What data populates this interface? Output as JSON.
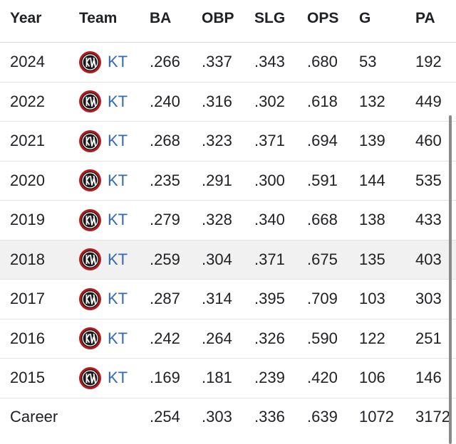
{
  "table": {
    "headers": {
      "year": "Year",
      "team": "Team",
      "ba": "BA",
      "obp": "OBP",
      "slg": "SLG",
      "ops": "OPS",
      "g": "G",
      "pa": "PA"
    },
    "rows": [
      {
        "year": "2024",
        "team": "KT",
        "ba": ".266",
        "obp": ".337",
        "slg": ".343",
        "ops": ".680",
        "g": "53",
        "pa": "192"
      },
      {
        "year": "2022",
        "team": "KT",
        "ba": ".240",
        "obp": ".316",
        "slg": ".302",
        "ops": ".618",
        "g": "132",
        "pa": "449"
      },
      {
        "year": "2021",
        "team": "KT",
        "ba": ".268",
        "obp": ".323",
        "slg": ".371",
        "ops": ".694",
        "g": "139",
        "pa": "460"
      },
      {
        "year": "2020",
        "team": "KT",
        "ba": ".235",
        "obp": ".291",
        "slg": ".300",
        "ops": ".591",
        "g": "144",
        "pa": "535"
      },
      {
        "year": "2019",
        "team": "KT",
        "ba": ".279",
        "obp": ".328",
        "slg": ".340",
        "ops": ".668",
        "g": "138",
        "pa": "433"
      },
      {
        "year": "2018",
        "team": "KT",
        "ba": ".259",
        "obp": ".304",
        "slg": ".371",
        "ops": ".675",
        "g": "135",
        "pa": "403"
      },
      {
        "year": "2017",
        "team": "KT",
        "ba": ".287",
        "obp": ".314",
        "slg": ".395",
        "ops": ".709",
        "g": "103",
        "pa": "303"
      },
      {
        "year": "2016",
        "team": "KT",
        "ba": ".242",
        "obp": ".264",
        "slg": ".326",
        "ops": ".590",
        "g": "122",
        "pa": "251"
      },
      {
        "year": "2015",
        "team": "KT",
        "ba": ".169",
        "obp": ".181",
        "slg": ".239",
        "ops": ".420",
        "g": "106",
        "pa": "146"
      }
    ],
    "career": {
      "label": "Career",
      "ba": ".254",
      "obp": ".303",
      "slg": ".336",
      "ops": ".639",
      "g": "1072",
      "pa": "3172"
    }
  },
  "icons": {
    "team_logo": "kt-wiz-logo-icon"
  },
  "colors": {
    "link": "#3367b8",
    "logo_ring": "#b5191e",
    "logo_fill": "#1a1a1a",
    "highlight_row": "#f1f1f1"
  }
}
